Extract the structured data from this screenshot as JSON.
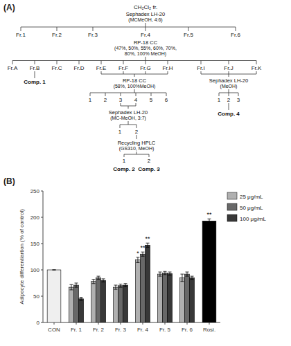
{
  "chart_data": [
    {
      "type": "flowchart",
      "title": "(A)",
      "nodes": [
        {
          "lines": [
            "CH₂Cl₂ fr."
          ],
          "from": []
        },
        {
          "lines": [
            "Sephadex LH-20",
            "(MCMeOH, 4:6)"
          ],
          "from": [
            0
          ]
        },
        {
          "lines": [
            "Fr.1"
          ],
          "from": [
            1
          ]
        },
        {
          "lines": [
            "Fr.2"
          ],
          "from": [
            1
          ]
        },
        {
          "lines": [
            "Fr.3"
          ],
          "from": [
            1
          ]
        },
        {
          "lines": [
            "Fr.4"
          ],
          "from": [
            1
          ]
        },
        {
          "lines": [
            "Fr.5"
          ],
          "from": [
            1
          ]
        },
        {
          "lines": [
            "Fr.6"
          ],
          "from": [
            1
          ]
        },
        {
          "lines": [
            "RP-18 CC",
            "(47%, 50%, 55%, 60%, 70%,",
            "80%, 100% MeOH)"
          ],
          "from": [
            5
          ]
        },
        {
          "lines": [
            "Fr.A"
          ],
          "from": [
            8
          ]
        },
        {
          "lines": [
            "Fr.B"
          ],
          "from": [
            8
          ]
        },
        {
          "lines": [
            "Fr.C"
          ],
          "from": [
            8
          ]
        },
        {
          "lines": [
            "Fr.D"
          ],
          "from": [
            8
          ]
        },
        {
          "lines": [
            "Fr.E"
          ],
          "from": [
            8
          ]
        },
        {
          "lines": [
            "Fr.F"
          ],
          "from": [
            8
          ]
        },
        {
          "lines": [
            "Fr.G"
          ],
          "from": [
            8
          ]
        },
        {
          "lines": [
            "Fr.H"
          ],
          "from": [
            8
          ]
        },
        {
          "lines": [
            "Fr.I"
          ],
          "from": [
            8
          ]
        },
        {
          "lines": [
            "Fr.J"
          ],
          "from": [
            8
          ]
        },
        {
          "lines": [
            "Fr.K"
          ],
          "from": [
            8
          ]
        },
        {
          "lines": [
            "Comp. 1"
          ],
          "from": [
            10
          ]
        },
        {
          "lines": [
            "RP-18 CC",
            "(58%, 100%MeOH)"
          ],
          "from": [
            13,
            14,
            15,
            16
          ]
        },
        {
          "lines": [
            "1"
          ],
          "from": [
            21
          ]
        },
        {
          "lines": [
            "2"
          ],
          "from": [
            21
          ]
        },
        {
          "lines": [
            "3"
          ],
          "from": [
            21
          ]
        },
        {
          "lines": [
            "4"
          ],
          "from": [
            21
          ]
        },
        {
          "lines": [
            "5"
          ],
          "from": [
            21
          ]
        },
        {
          "lines": [
            "6"
          ],
          "from": [
            21
          ]
        },
        {
          "lines": [
            "Sephadex LH-20",
            "(MC-MeOH, 3:7)"
          ],
          "from": [
            24,
            25
          ]
        },
        {
          "lines": [
            "1"
          ],
          "from": [
            28
          ]
        },
        {
          "lines": [
            "2"
          ],
          "from": [
            28
          ]
        },
        {
          "lines": [
            "Recycling HPLC",
            "(GS310, MeOH)"
          ],
          "from": [
            30
          ]
        },
        {
          "lines": [
            "1"
          ],
          "from": [
            31
          ]
        },
        {
          "lines": [
            "2"
          ],
          "from": [
            31
          ]
        },
        {
          "lines": [
            "Comp. 2"
          ],
          "from": [
            32
          ]
        },
        {
          "lines": [
            "Comp. 3"
          ],
          "from": [
            33
          ]
        },
        {
          "lines": [
            "Sephadex LH-20",
            "(MeOH)"
          ],
          "from": [
            17,
            18,
            19
          ]
        },
        {
          "lines": [
            "1"
          ],
          "from": [
            36
          ]
        },
        {
          "lines": [
            "2"
          ],
          "from": [
            36
          ]
        },
        {
          "lines": [
            "3"
          ],
          "from": [
            36
          ]
        },
        {
          "lines": [
            "Comp. 4"
          ],
          "from": [
            38
          ]
        }
      ]
    },
    {
      "type": "bar",
      "title": "(B)",
      "categories": [
        "CON",
        "Fr. 1",
        "Fr. 2",
        "Fr. 3",
        "Fr. 4",
        "Fr. 5",
        "Fr. 6",
        "Rosi."
      ],
      "series": [
        {
          "name": "25 μg/mL",
          "color": "#b0b0b0",
          "values": [
            null,
            67,
            78,
            67,
            119,
            92,
            85,
            null
          ],
          "errors": [
            null,
            5,
            4,
            4,
            5,
            4,
            7,
            null
          ]
        },
        {
          "name": "50 μg/mL",
          "color": "#686868",
          "values": [
            null,
            71,
            85,
            70,
            130,
            94,
            92,
            null
          ],
          "errors": [
            null,
            4,
            3,
            3,
            4,
            3,
            4,
            null
          ]
        },
        {
          "name": "100 μg/mL",
          "color": "#383838",
          "values": [
            null,
            45,
            80,
            71,
            147,
            93,
            85,
            null
          ],
          "errors": [
            null,
            3,
            3,
            3,
            4,
            3,
            3,
            null
          ]
        },
        {
          "colors": [
            "#efefef",
            null,
            null,
            null,
            null,
            null,
            null,
            "#000000"
          ],
          "values": [
            100,
            null,
            null,
            null,
            null,
            null,
            null,
            193
          ],
          "errors": [
            0,
            null,
            null,
            null,
            null,
            null,
            null,
            4
          ]
        }
      ],
      "ylabel": "Adipocyte differentiartion (% of control)",
      "ylim": [
        0,
        250
      ],
      "yticks": [
        0,
        50,
        100,
        150,
        200,
        250
      ],
      "legend": "right",
      "annotations": [
        {
          "text": "*",
          "category": "Fr. 4",
          "series": 0
        },
        {
          "text": "**",
          "category": "Fr. 4",
          "series": 1
        },
        {
          "text": "**",
          "category": "Fr. 4",
          "series": 2
        },
        {
          "text": "**",
          "category": "Rosi.",
          "series": 3
        }
      ]
    }
  ]
}
